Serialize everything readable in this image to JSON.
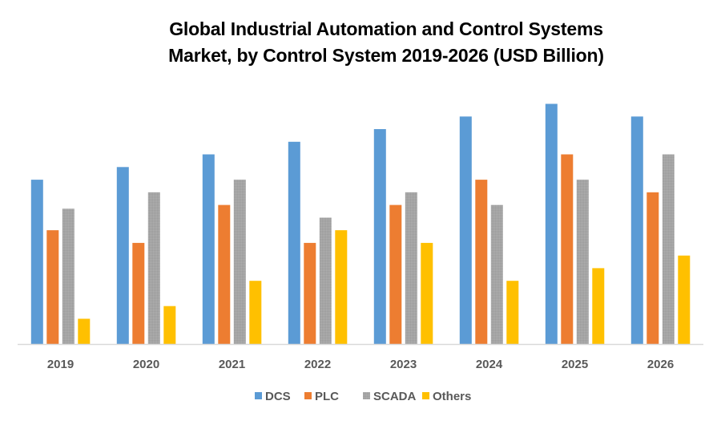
{
  "chart_data": {
    "type": "bar",
    "title": "Global Industrial Automation and Control Systems Market, by Control System 2019-2026 (USD Billion)",
    "title_lines": [
      "Global Industrial Automation and Control Systems",
      "Market, by Control System 2019-2026 (USD Billion)"
    ],
    "xlabel": "",
    "ylabel": "",
    "y_axis_visible": false,
    "grid": false,
    "legend_position": "bottom",
    "ylim": [
      0,
      20.3
    ],
    "categories": [
      "2019",
      "2020",
      "2021",
      "2022",
      "2023",
      "2024",
      "2025",
      "2026"
    ],
    "series": [
      {
        "name": "DCS",
        "color": "#5B9BD5",
        "values": [
          13.0,
          14.0,
          15.0,
          16.0,
          17.0,
          18.0,
          19.0,
          18.0
        ]
      },
      {
        "name": "PLC",
        "color": "#ED7D31",
        "values": [
          9.0,
          8.0,
          11.0,
          8.0,
          11.0,
          13.0,
          15.0,
          12.0
        ]
      },
      {
        "name": "SCADA",
        "color": "#A5A5A5",
        "values": [
          10.7,
          12.0,
          13.0,
          10.0,
          12.0,
          11.0,
          13.0,
          15.0
        ]
      },
      {
        "name": "Others",
        "color": "#FFC000",
        "values": [
          2.0,
          3.0,
          5.0,
          9.0,
          8.0,
          5.0,
          6.0,
          7.0
        ]
      }
    ]
  }
}
